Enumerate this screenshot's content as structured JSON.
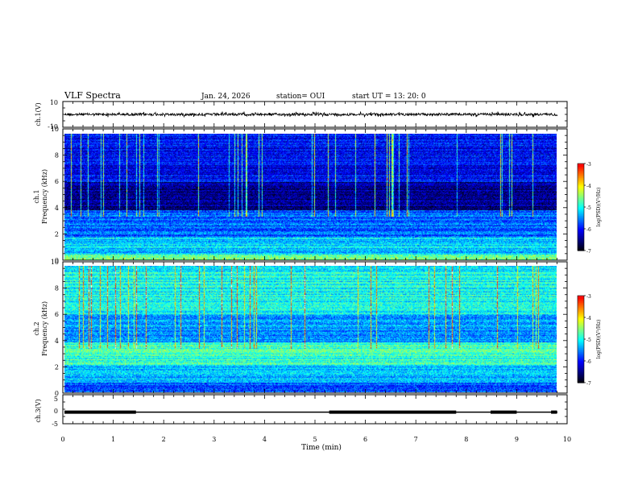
{
  "header": {
    "title": "VLF Spectra",
    "date": "Jan. 24, 2026",
    "station": "station= OUI",
    "start": "start UT =  13: 20: 0"
  },
  "chart_data": [
    {
      "type": "line",
      "panel": "ch1-waveform",
      "ylabel": "ch.1(V)",
      "ylim": [
        -10,
        10
      ],
      "yticks": [
        "10",
        "-10"
      ],
      "xlim": [
        0,
        10
      ],
      "series_color": "#000000"
    },
    {
      "type": "heatmap",
      "panel": "ch1-spectrogram",
      "ylabel_line1": "ch.1",
      "ylabel_line2": "Frequency (kHz)",
      "ylim": [
        0,
        10
      ],
      "yticks": [
        "0",
        "2",
        "4",
        "6",
        "8",
        "10"
      ],
      "xlim": [
        0,
        10
      ],
      "colorbar": {
        "label": "log(PSD)(V²/Hz)",
        "range": [
          -7,
          -3
        ],
        "ticks": [
          "-3",
          "-4",
          "-5",
          "-6",
          "-7"
        ],
        "colors": [
          "#000000",
          "#00007f",
          "#0000ff",
          "#0080ff",
          "#00ffff",
          "#80ff80",
          "#ffff00",
          "#ff8000",
          "#ff0000",
          "#ffffff"
        ]
      }
    },
    {
      "type": "heatmap",
      "panel": "ch2-spectrogram",
      "ylabel_line1": "ch.2",
      "ylabel_line2": "Frequency (kHz)",
      "ylim": [
        0,
        10
      ],
      "yticks": [
        "0",
        "2",
        "4",
        "6",
        "8",
        "10"
      ],
      "xlim": [
        0,
        10
      ],
      "colorbar": {
        "label": "log(PSD)(V²/Hz)",
        "range": [
          -7,
          -3
        ],
        "ticks": [
          "-3",
          "-4",
          "-5",
          "-6",
          "-7"
        ],
        "colors": [
          "#000000",
          "#00007f",
          "#0000ff",
          "#0080ff",
          "#00ffff",
          "#80ff80",
          "#ffff00",
          "#ff8000",
          "#ff0000",
          "#ffffff"
        ]
      }
    },
    {
      "type": "line",
      "panel": "ch3-waveform",
      "ylabel": "ch.3(V)",
      "ylim": [
        -5,
        5
      ],
      "yticks": [
        "5",
        "0",
        "-5"
      ],
      "xlim": [
        0,
        10
      ],
      "xlabel": "Time (min)",
      "xticks": [
        "0",
        "1",
        "2",
        "3",
        "4",
        "5",
        "6",
        "7",
        "8",
        "9",
        "10"
      ],
      "thick_segments_min": [
        [
          0,
          1.45
        ],
        [
          5.25,
          7.8
        ],
        [
          8.45,
          9.0
        ],
        [
          9.65,
          9.8
        ]
      ],
      "level_v": -1
    }
  ]
}
